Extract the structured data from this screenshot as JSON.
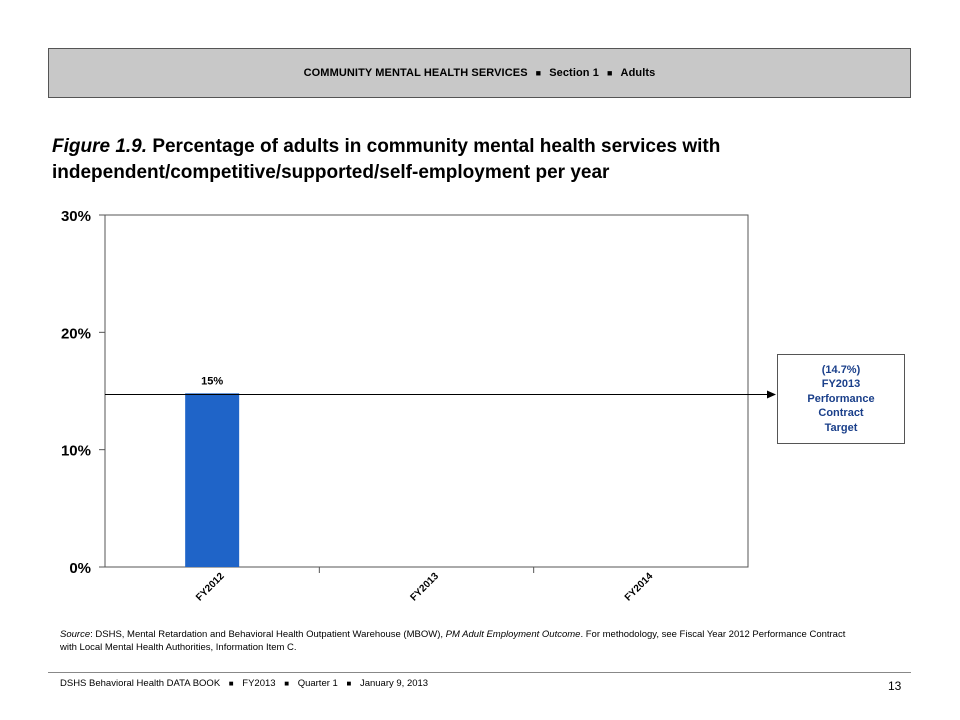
{
  "header": {
    "part1": "COMMUNITY MENTAL HEALTH SERVICES",
    "separator": "■",
    "part2": "Section 1",
    "part3": "Adults"
  },
  "figure": {
    "label": "Figure 1.9.",
    "title": "Percentage of adults in community mental health services with independent/competitive/supported/self-employment per year"
  },
  "chart_data": {
    "type": "bar",
    "categories": [
      "FY2012",
      "FY2013",
      "FY2014"
    ],
    "values": [
      14.8,
      null,
      null
    ],
    "data_labels": [
      "15%",
      "",
      ""
    ],
    "ylim": [
      0,
      30
    ],
    "yticks": [
      0,
      10,
      20,
      30
    ],
    "ytick_labels": [
      "0%",
      "10%",
      "20%",
      "30%"
    ],
    "target_value": 14.7,
    "bar_color": "#1f64c8",
    "grid": false,
    "xlabel": "",
    "ylabel": ""
  },
  "target_box": {
    "line1": "(14.7%)",
    "line2": "FY2013",
    "line3": "Performance",
    "line4": "Contract",
    "line5": "Target",
    "color": "#1a3f8a"
  },
  "source": {
    "label": "Source",
    "text1": ": DSHS, Mental Retardation and Behavioral Health Outpatient Warehouse (MBOW), ",
    "italic": "PM Adult Employment Outcome",
    "text2": ". For methodology, see Fiscal Year 2012 Performance Contract with Local Mental Health Authorities, Information Item C."
  },
  "footer": {
    "part1": "DSHS Behavioral Health DATA BOOK",
    "separator": "■",
    "part2": "FY2013",
    "part3": "Quarter 1",
    "part4": "January  9, 2013",
    "page_number": "13"
  }
}
